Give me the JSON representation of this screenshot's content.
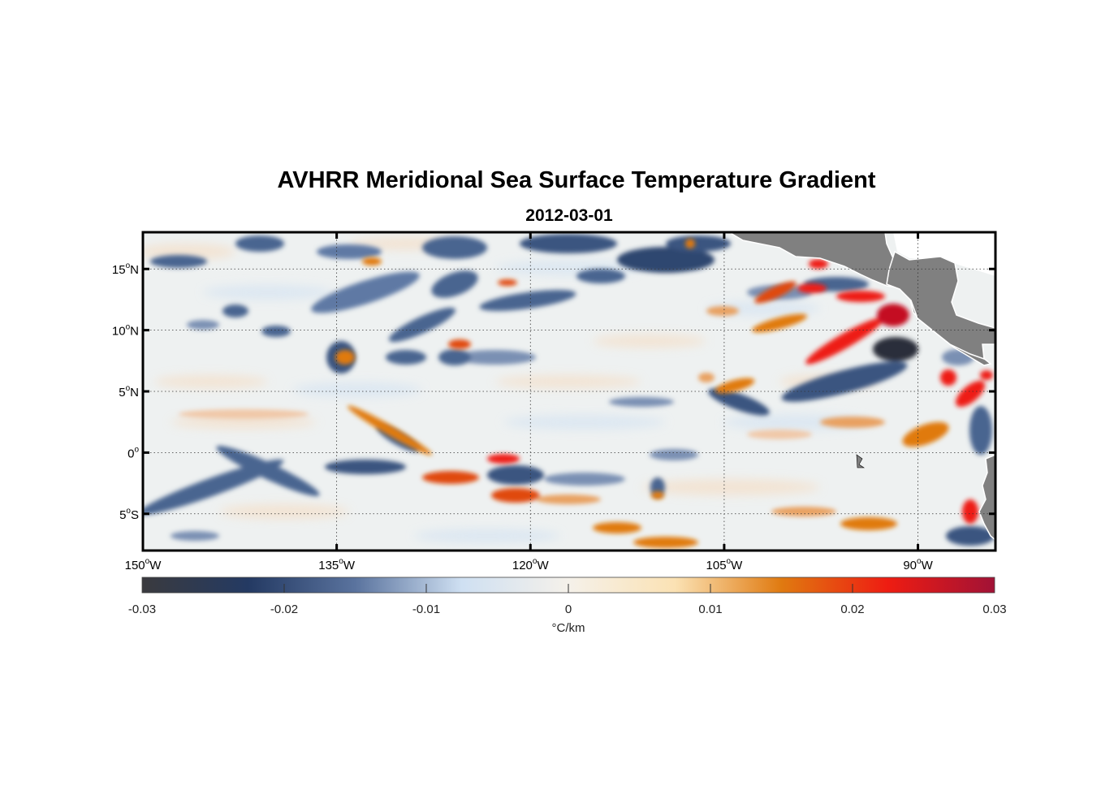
{
  "title": "AVHRR Meridional Sea Surface Temperature Gradient",
  "subtitle": "2012-03-01",
  "map": {
    "lon_range": [
      -150,
      -84
    ],
    "lat_range": [
      -8,
      18
    ],
    "lat_ticks": [
      {
        "value": 15,
        "num": "15",
        "hemi": "N"
      },
      {
        "value": 10,
        "num": "10",
        "hemi": "N"
      },
      {
        "value": 5,
        "num": "5",
        "hemi": "N"
      },
      {
        "value": 0,
        "num": "0",
        "hemi": ""
      },
      {
        "value": -5,
        "num": "5",
        "hemi": "S"
      }
    ],
    "lon_ticks": [
      {
        "value": -150,
        "num": "150",
        "hemi": "W"
      },
      {
        "value": -135,
        "num": "135",
        "hemi": "W"
      },
      {
        "value": -120,
        "num": "120",
        "hemi": "W"
      },
      {
        "value": -105,
        "num": "105",
        "hemi": "W"
      },
      {
        "value": -90,
        "num": "90",
        "hemi": "W"
      }
    ],
    "grid": true,
    "land_color": "#808080"
  },
  "colorbar": {
    "min": -0.03,
    "max": 0.03,
    "ticks": [
      "-0.03",
      "-0.02",
      "-0.01",
      "0",
      "0.01",
      "0.02",
      "0.03"
    ],
    "unit_label": "°C/km",
    "colors": [
      "#3a3a3e",
      "#243a63",
      "#5a739e",
      "#cfe0f2",
      "#f5f1ea",
      "#fbe2b4",
      "#e07a10",
      "#ee1c12",
      "#a11236"
    ]
  }
}
